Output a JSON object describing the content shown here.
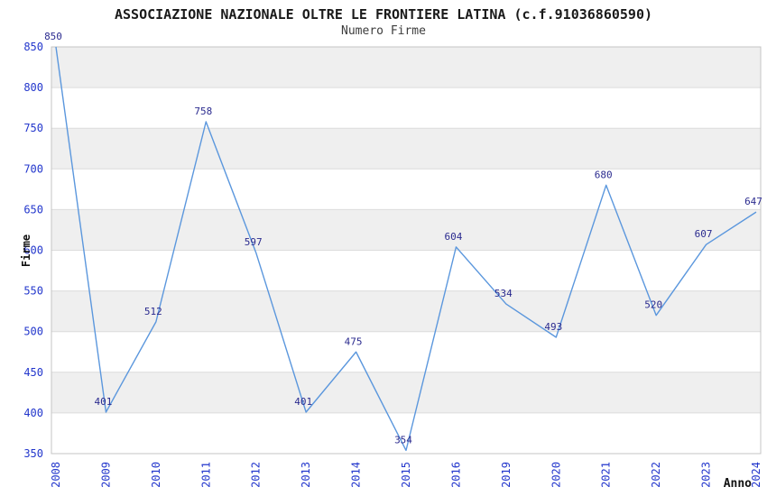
{
  "header": {
    "title": "ASSOCIAZIONE NAZIONALE OLTRE LE FRONTIERE LATINA (c.f.91036860590)",
    "subtitle": "Numero Firme"
  },
  "chart_data": {
    "type": "line",
    "title": "ASSOCIAZIONE NAZIONALE OLTRE LE FRONTIERE LATINA (c.f.91036860590)",
    "subtitle": "Numero Firme",
    "xlabel": "Anno",
    "ylabel": "Firme",
    "categories": [
      "2008",
      "2009",
      "2010",
      "2011",
      "2012",
      "2013",
      "2014",
      "2015",
      "2016",
      "2019",
      "2020",
      "2021",
      "2022",
      "2023",
      "2024"
    ],
    "values": [
      850,
      401,
      512,
      758,
      597,
      401,
      475,
      354,
      604,
      534,
      493,
      680,
      520,
      607,
      647
    ],
    "ylim": [
      350,
      850
    ],
    "ytick_step": 50,
    "yticks": [
      350,
      400,
      450,
      500,
      550,
      600,
      650,
      700,
      750,
      800,
      850
    ],
    "grid": "horizontal-bands-alternating",
    "legend": "none",
    "point_labels_visible": true,
    "colors": {
      "line": "#5b97dd",
      "axis_tick_label": "#2236cc",
      "point_label": "#2b2b8f",
      "band_fill": "#efefef",
      "gridline": "#dcdcdc",
      "plot_border": "#c4c4c4",
      "title_text": "#1a1a1a",
      "subtitle_text": "#3d3d3d",
      "background": "#ffffff"
    }
  },
  "layout_labels": {
    "y_axis_title": "Firme",
    "x_axis_title": "Anno"
  }
}
